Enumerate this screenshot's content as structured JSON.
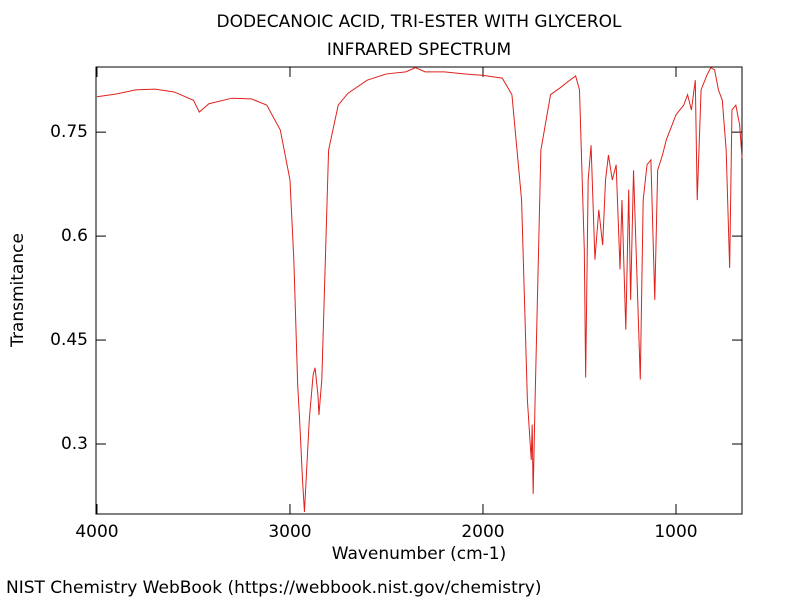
{
  "chart_data": {
    "type": "line",
    "title": "DODECANOIC ACID, TRI-ESTER WITH GLYCEROL",
    "subtitle": "INFRARED SPECTRUM",
    "x_label": "Wavenumber (cm-1)",
    "y_label": "Transmitance",
    "footer": "NIST Chemistry WebBook (https://webbook.nist.gov/chemistry)",
    "color": "#e0211c",
    "xlim": [
      4005,
      658
    ],
    "ylim": [
      0.199,
      0.844
    ],
    "xticks": [
      4000,
      3000,
      2000,
      1000
    ],
    "yticks": [
      0.3,
      0.45,
      0.6,
      0.75
    ],
    "x": [
      4000,
      3900,
      3800,
      3700,
      3600,
      3500,
      3470,
      3420,
      3300,
      3200,
      3120,
      3050,
      3000,
      2980,
      2960,
      2950,
      2935,
      2925,
      2900,
      2880,
      2870,
      2855,
      2850,
      2835,
      2800,
      2750,
      2700,
      2600,
      2500,
      2400,
      2350,
      2300,
      2200,
      2100,
      2000,
      1900,
      1850,
      1800,
      1770,
      1750,
      1745,
      1740,
      1730,
      1700,
      1650,
      1600,
      1550,
      1520,
      1500,
      1475,
      1468,
      1455,
      1440,
      1420,
      1400,
      1380,
      1365,
      1350,
      1330,
      1310,
      1290,
      1280,
      1260,
      1245,
      1235,
      1220,
      1205,
      1185,
      1170,
      1150,
      1130,
      1110,
      1095,
      1070,
      1050,
      1000,
      960,
      940,
      920,
      900,
      890,
      870,
      840,
      820,
      800,
      780,
      760,
      740,
      722,
      710,
      690,
      670,
      658
    ],
    "values": [
      0.801,
      0.805,
      0.811,
      0.812,
      0.808,
      0.796,
      0.779,
      0.791,
      0.799,
      0.798,
      0.789,
      0.753,
      0.681,
      0.566,
      0.385,
      0.335,
      0.248,
      0.202,
      0.335,
      0.4,
      0.41,
      0.371,
      0.342,
      0.393,
      0.724,
      0.789,
      0.806,
      0.825,
      0.834,
      0.837,
      0.843,
      0.837,
      0.837,
      0.834,
      0.832,
      0.828,
      0.804,
      0.652,
      0.364,
      0.277,
      0.328,
      0.228,
      0.364,
      0.724,
      0.804,
      0.814,
      0.825,
      0.831,
      0.811,
      0.58,
      0.396,
      0.681,
      0.731,
      0.566,
      0.638,
      0.587,
      0.681,
      0.717,
      0.681,
      0.703,
      0.552,
      0.652,
      0.465,
      0.667,
      0.508,
      0.695,
      0.566,
      0.393,
      0.652,
      0.703,
      0.71,
      0.508,
      0.695,
      0.717,
      0.739,
      0.775,
      0.789,
      0.804,
      0.782,
      0.825,
      0.652,
      0.811,
      0.832,
      0.843,
      0.84,
      0.811,
      0.796,
      0.724,
      0.554,
      0.782,
      0.789,
      0.76,
      0.713
    ]
  }
}
